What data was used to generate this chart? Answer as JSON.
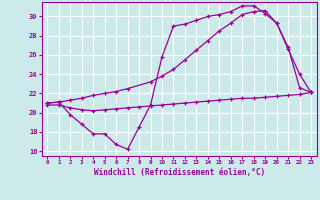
{
  "xlabel": "Windchill (Refroidissement éolien,°C)",
  "background_color": "#cceaea",
  "grid_color": "#ffffff",
  "line_color": "#990099",
  "xlim": [
    -0.5,
    23.5
  ],
  "ylim": [
    15.5,
    31.5
  ],
  "xticks": [
    0,
    1,
    2,
    3,
    4,
    5,
    6,
    7,
    8,
    9,
    10,
    11,
    12,
    13,
    14,
    15,
    16,
    17,
    18,
    19,
    20,
    21,
    22,
    23
  ],
  "yticks": [
    16,
    18,
    20,
    22,
    24,
    26,
    28,
    30
  ],
  "line1_x": [
    0,
    1,
    2,
    3,
    4,
    5,
    6,
    7,
    8,
    9,
    10,
    11,
    12,
    13,
    14,
    15,
    16,
    17,
    18,
    19,
    20,
    21,
    22,
    23
  ],
  "line1_y": [
    21.0,
    21.1,
    19.8,
    18.8,
    17.8,
    17.8,
    16.7,
    16.2,
    18.5,
    20.8,
    25.8,
    29.0,
    29.2,
    29.6,
    30.0,
    30.2,
    30.5,
    31.1,
    31.1,
    30.3,
    29.3,
    26.6,
    24.0,
    22.1
  ],
  "line2_x": [
    0,
    1,
    2,
    3,
    4,
    5,
    6,
    7,
    9,
    10,
    11,
    12,
    13,
    14,
    15,
    16,
    17,
    18,
    19,
    20,
    21,
    22,
    23
  ],
  "line2_y": [
    21.0,
    21.1,
    21.3,
    21.5,
    21.8,
    22.0,
    22.2,
    22.5,
    23.2,
    23.8,
    24.5,
    25.5,
    26.5,
    27.5,
    28.5,
    29.3,
    30.2,
    30.5,
    30.6,
    29.3,
    26.8,
    22.6,
    22.1
  ],
  "line3_x": [
    0,
    1,
    2,
    3,
    4,
    5,
    6,
    7,
    8,
    9,
    10,
    11,
    12,
    13,
    14,
    15,
    16,
    17,
    18,
    19,
    20,
    21,
    22,
    23
  ],
  "line3_y": [
    20.8,
    20.8,
    20.5,
    20.3,
    20.2,
    20.3,
    20.4,
    20.5,
    20.6,
    20.7,
    20.8,
    20.9,
    21.0,
    21.1,
    21.2,
    21.3,
    21.4,
    21.5,
    21.5,
    21.6,
    21.7,
    21.8,
    21.9,
    22.1
  ]
}
